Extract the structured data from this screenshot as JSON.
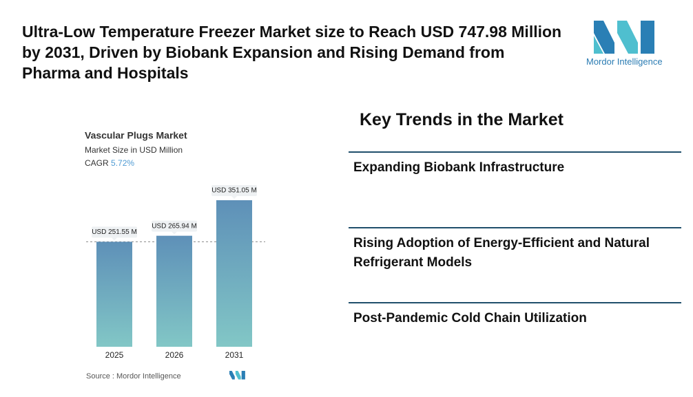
{
  "header": {
    "title": "Ultra-Low Temperature Freezer Market size to Reach USD 747.98 Million by 2031, Driven by Biobank Expansion and Rising Demand from Pharma and Hospitals",
    "logo_text": "Mordor Intelligence"
  },
  "chart_data": {
    "type": "bar",
    "title": "Vascular Plugs Market",
    "subtitle": "Market Size in USD Million",
    "cagr_label": "CAGR",
    "cagr_value": "5.72%",
    "categories": [
      "2025",
      "2026",
      "2031"
    ],
    "values": [
      251.55,
      265.94,
      351.05
    ],
    "value_labels": [
      "USD 251.55 M",
      "USD 265.94 M",
      "USD 351.05 M"
    ],
    "colors": [
      "#5e90b8",
      "#82c7c6"
    ],
    "source": "Source : Mordor Intelligence"
  },
  "trends": {
    "title": "Key Trends in the Market",
    "items": [
      "Expanding Biobank Infrastructure",
      "Rising Adoption of Energy-Efficient and Natural Refrigerant Models",
      "Post-Pandemic Cold Chain Utilization"
    ]
  }
}
